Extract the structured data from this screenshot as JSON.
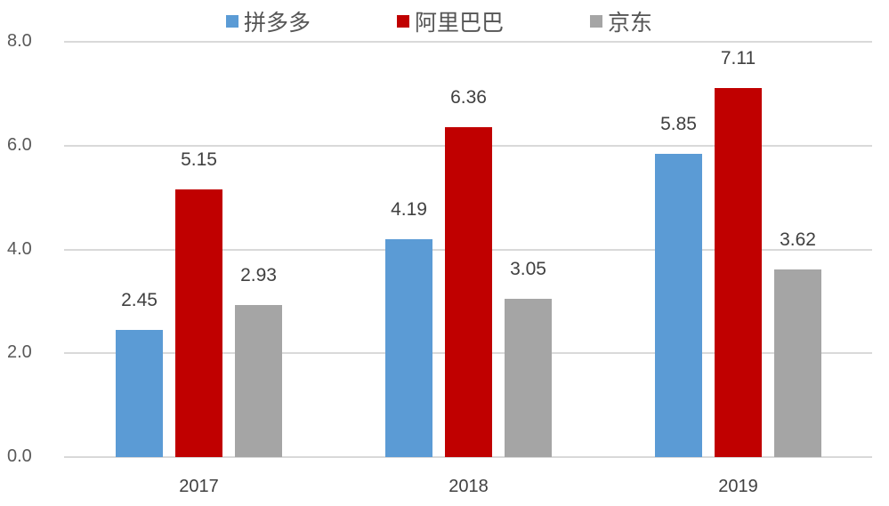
{
  "chart_data": {
    "type": "bar",
    "title": "",
    "xlabel": "",
    "ylabel": "",
    "categories": [
      "2017",
      "2018",
      "2019"
    ],
    "series": [
      {
        "name": "拼多多",
        "color": "#5b9bd5",
        "values": [
          2.45,
          4.19,
          5.85
        ]
      },
      {
        "name": "阿里巴巴",
        "color": "#c00000",
        "values": [
          5.15,
          6.36,
          7.11
        ]
      },
      {
        "name": "京东",
        "color": "#a5a5a5",
        "values": [
          2.93,
          3.05,
          3.62
        ]
      }
    ],
    "ylim": [
      0,
      8
    ],
    "yticks": [
      "0.0",
      "2.0",
      "4.0",
      "6.0",
      "8.0"
    ],
    "grid": true,
    "legend_position": "top",
    "data_labels": true
  }
}
